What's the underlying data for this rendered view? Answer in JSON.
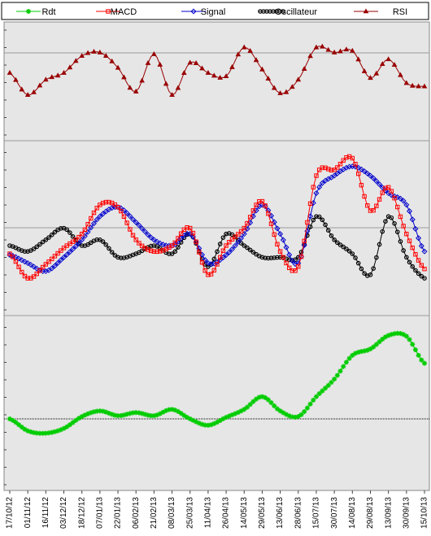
{
  "chart_data": {
    "type": "line",
    "x": [
      "17/10/12",
      "01/11/12",
      "16/11/12",
      "03/12/12",
      "18/12/12",
      "07/01/13",
      "22/01/13",
      "06/02/13",
      "21/02/13",
      "08/03/13",
      "25/03/13",
      "11/04/13",
      "26/04/13",
      "14/05/13",
      "29/05/13",
      "13/06/13",
      "28/06/13",
      "15/07/13",
      "30/07/13",
      "14/08/13",
      "29/08/13",
      "13/09/13",
      "30/09/13",
      "15/10/13"
    ],
    "legend_position": "top",
    "grid": true,
    "series": [
      {
        "name": "Rdt",
        "color": "#00cc00",
        "marker": "star",
        "panel": "rendement",
        "values": [
          0.0,
          -1.5,
          -1.8,
          -1.2,
          0.3,
          1.0,
          0.4,
          0.8,
          0.4,
          1.2,
          0.0,
          -0.8,
          0.2,
          1.2,
          2.8,
          1.0,
          0.3,
          2.8,
          5.0,
          8.0,
          8.8,
          10.5,
          10.4,
          7.0
        ]
      },
      {
        "name": "MACD",
        "color": "#ff0000",
        "marker": "square",
        "panel": "macd",
        "values": [
          0.3,
          -1.8,
          -0.6,
          0.8,
          2.0,
          4.5,
          4.3,
          1.5,
          0.5,
          1.0,
          2.5,
          -1.5,
          1.0,
          2.5,
          4.8,
          0.5,
          -0.8,
          7.0,
          7.5,
          8.5,
          4.0,
          6.0,
          2.0,
          -1.0
        ]
      },
      {
        "name": "Signal",
        "color": "#0000cc",
        "marker": "diamond",
        "panel": "macd",
        "values": [
          0.2,
          -0.5,
          -1.2,
          0.0,
          1.5,
          3.5,
          4.3,
          3.0,
          1.5,
          1.0,
          2.0,
          -0.5,
          0.2,
          2.0,
          4.5,
          2.0,
          -0.5,
          5.5,
          7.0,
          7.8,
          7.0,
          5.5,
          4.5,
          0.5
        ]
      },
      {
        "name": "Oscillateur",
        "color": "#000000",
        "marker": "circle",
        "panel": "macd",
        "values": [
          1.0,
          0.5,
          1.5,
          2.5,
          1.0,
          1.5,
          0.0,
          0.3,
          1.0,
          0.3,
          2.0,
          -0.8,
          2.0,
          1.0,
          0.0,
          0.0,
          0.0,
          3.5,
          1.5,
          0.3,
          -1.5,
          3.5,
          0.0,
          -1.8
        ]
      },
      {
        "name": "RSI",
        "color": "#990000",
        "marker": "triangle",
        "panel": "rsi",
        "values": [
          60,
          47,
          56,
          60,
          70,
          72,
          63,
          49,
          71,
          47,
          66,
          60,
          58,
          75,
          62,
          48,
          56,
          75,
          72,
          73,
          57,
          68,
          54,
          52
        ]
      }
    ]
  }
}
